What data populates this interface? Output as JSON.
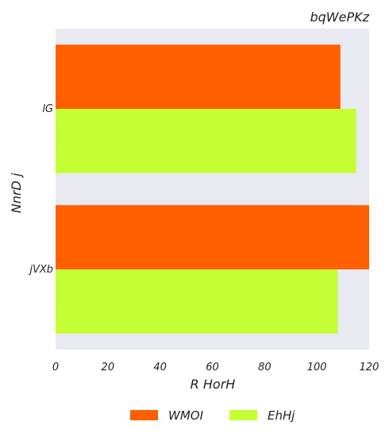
{
  "chart_data": {
    "type": "bar",
    "orientation": "horizontal",
    "title": "bqWePKz",
    "xlabel": "R HorH",
    "ylabel": "NnrD j",
    "categories": [
      "lG",
      "jVXb"
    ],
    "series": [
      {
        "name": "WMOI",
        "color": "#ff5f00",
        "values": [
          109,
          120
        ]
      },
      {
        "name": "EhHj",
        "color": "#c3ff33",
        "values": [
          115,
          108
        ]
      }
    ],
    "xlim": [
      0,
      120
    ],
    "xticks": [
      0,
      20,
      40,
      60,
      80,
      100,
      120
    ],
    "grid": false,
    "background": "#e9e9f2",
    "legend_position": "bottom"
  }
}
